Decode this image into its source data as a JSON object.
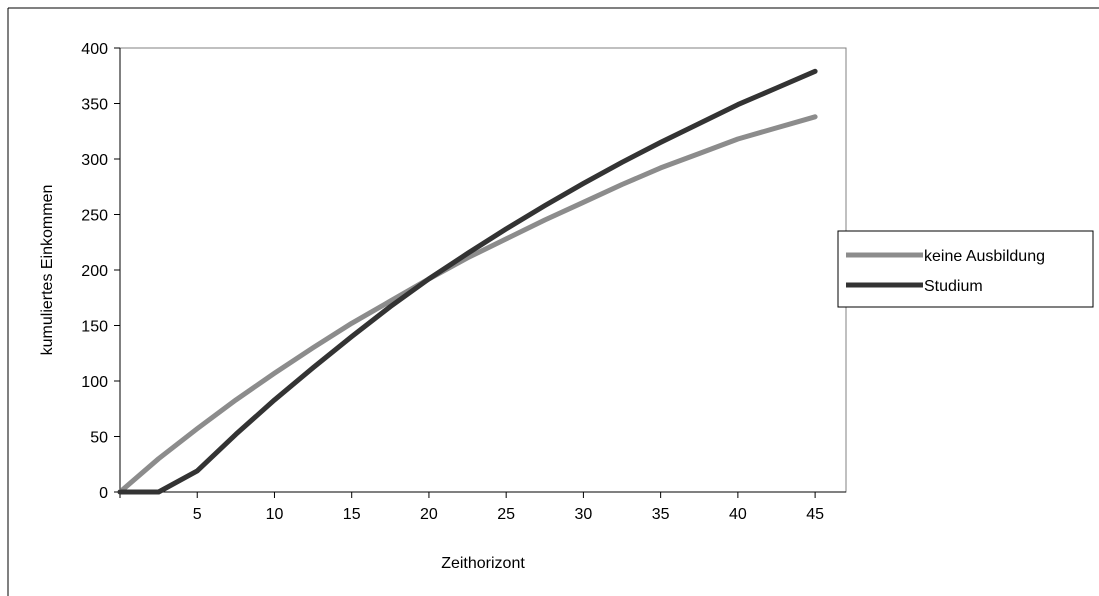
{
  "chart_data": {
    "type": "line",
    "title": "",
    "xlabel": "Zeithorizont",
    "ylabel": "kumuliertes Einkommen",
    "xlim": [
      0,
      47
    ],
    "ylim": [
      0,
      400
    ],
    "x_ticks": [
      5,
      10,
      15,
      20,
      25,
      30,
      35,
      40,
      45
    ],
    "y_ticks": [
      0,
      50,
      100,
      150,
      200,
      250,
      300,
      350,
      400
    ],
    "grid": false,
    "legend_position": "right",
    "x": [
      0,
      2.5,
      5,
      7.5,
      10,
      12.5,
      15,
      17.5,
      20,
      22.5,
      25,
      27.5,
      30,
      32.5,
      35,
      37.5,
      40,
      42.5,
      45
    ],
    "series": [
      {
        "name": "keine Ausbildung",
        "color": "#8c8c8c",
        "values": [
          0,
          30,
          57,
          83,
          107,
          130,
          152,
          172,
          192,
          211,
          228,
          245,
          261,
          277,
          292,
          305,
          318,
          328,
          338
        ]
      },
      {
        "name": "Studium",
        "color": "#333333",
        "values": [
          0,
          0,
          19,
          52,
          83,
          112,
          140,
          167,
          192,
          215,
          237,
          258,
          278,
          297,
          315,
          332,
          349,
          364,
          379
        ]
      }
    ]
  }
}
